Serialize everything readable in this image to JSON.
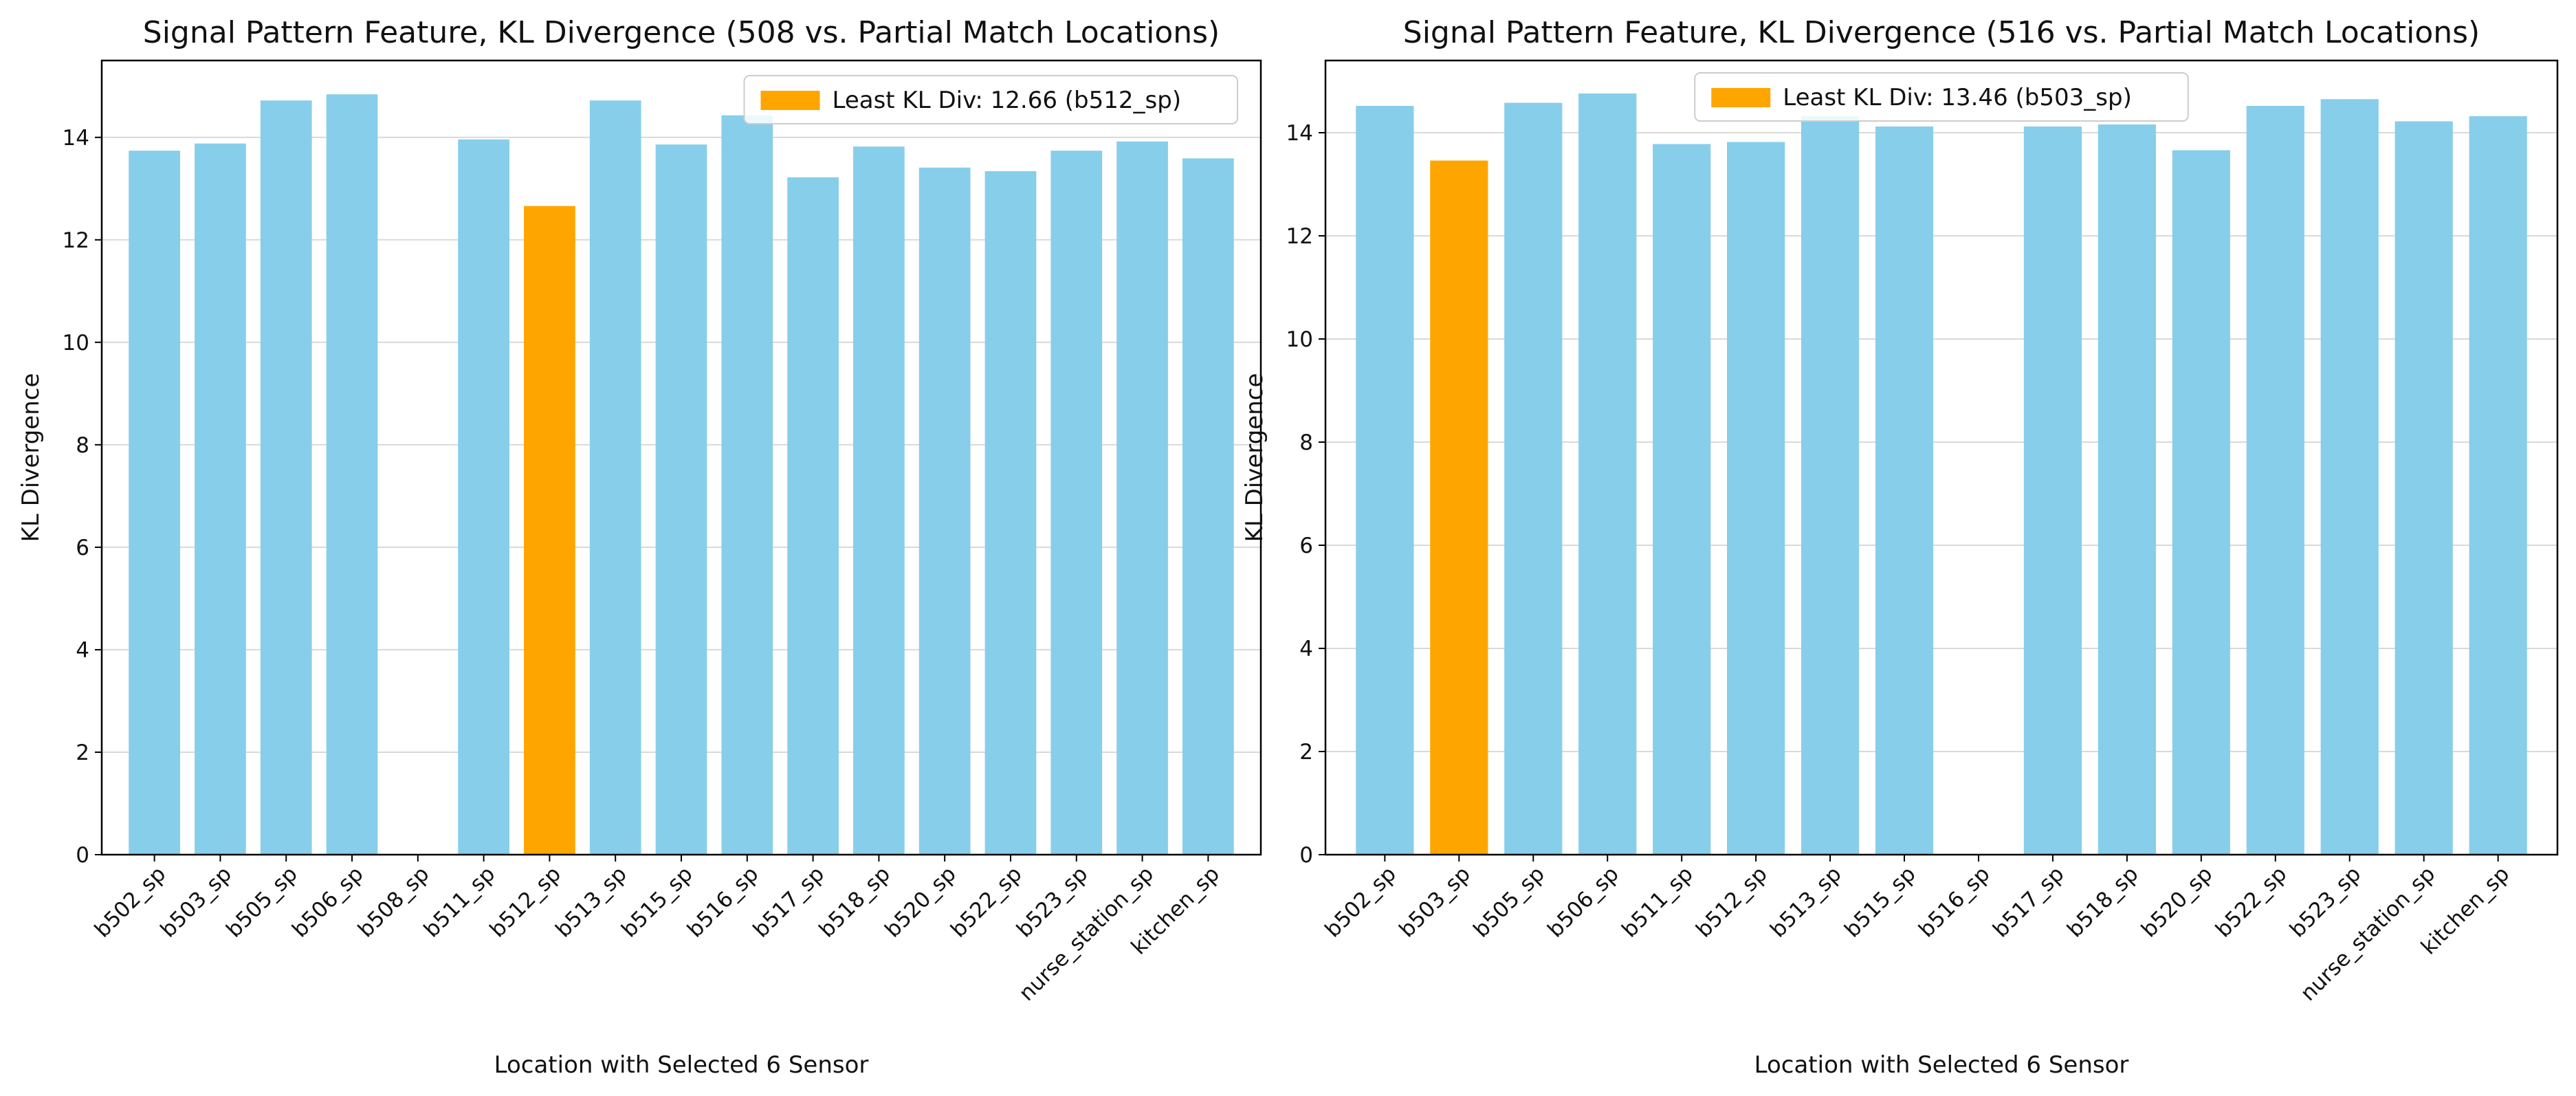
{
  "chart_data": [
    {
      "type": "bar",
      "title": "Signal Pattern Feature, KL Divergence (508 vs. Partial Match Locations)",
      "xlabel": "Location with Selected 6 Sensor",
      "ylabel": "KL Divergence",
      "ylim": [
        0,
        15.5
      ],
      "yticks": [
        0,
        2,
        4,
        6,
        8,
        10,
        12,
        14
      ],
      "grid": "y",
      "legend_position": "top-right",
      "legend": [
        {
          "label": "Least KL Div: 12.66 (b512_sp)",
          "color": "#FFA500"
        }
      ],
      "categories": [
        "b502_sp",
        "b503_sp",
        "b505_sp",
        "b506_sp",
        "b508_sp",
        "b511_sp",
        "b512_sp",
        "b513_sp",
        "b515_sp",
        "b516_sp",
        "b517_sp",
        "b518_sp",
        "b520_sp",
        "b522_sp",
        "b523_sp",
        "nurse_station_sp",
        "kitchen_sp"
      ],
      "values": [
        13.74,
        13.88,
        14.72,
        14.84,
        null,
        13.96,
        12.66,
        14.72,
        13.86,
        14.43,
        13.22,
        13.82,
        13.41,
        13.34,
        13.74,
        13.92,
        13.59
      ],
      "highlight": "b512_sp",
      "bar_color": "#87CEEB",
      "highlight_color": "#FFA500"
    },
    {
      "type": "bar",
      "title": "Signal Pattern Feature, KL Divergence (516 vs. Partial Match Locations)",
      "xlabel": "Location with Selected 6 Sensor",
      "ylabel": "KL Divergence",
      "ylim": [
        0,
        15.4
      ],
      "yticks": [
        0,
        2,
        4,
        6,
        8,
        10,
        12,
        14
      ],
      "grid": "y",
      "legend_position": "top-center",
      "legend": [
        {
          "label": "Least KL Div: 13.46 (b503_sp)",
          "color": "#FFA500"
        }
      ],
      "categories": [
        "b502_sp",
        "b503_sp",
        "b505_sp",
        "b506_sp",
        "b511_sp",
        "b512_sp",
        "b513_sp",
        "b515_sp",
        "b516_sp",
        "b517_sp",
        "b518_sp",
        "b520_sp",
        "b522_sp",
        "b523_sp",
        "nurse_station_sp",
        "kitchen_sp"
      ],
      "values": [
        14.52,
        13.46,
        14.58,
        14.76,
        13.78,
        13.82,
        14.32,
        14.12,
        null,
        14.12,
        14.16,
        13.66,
        14.52,
        14.65,
        14.22,
        14.32
      ],
      "highlight": "b503_sp",
      "bar_color": "#87CEEB",
      "highlight_color": "#FFA500"
    }
  ]
}
